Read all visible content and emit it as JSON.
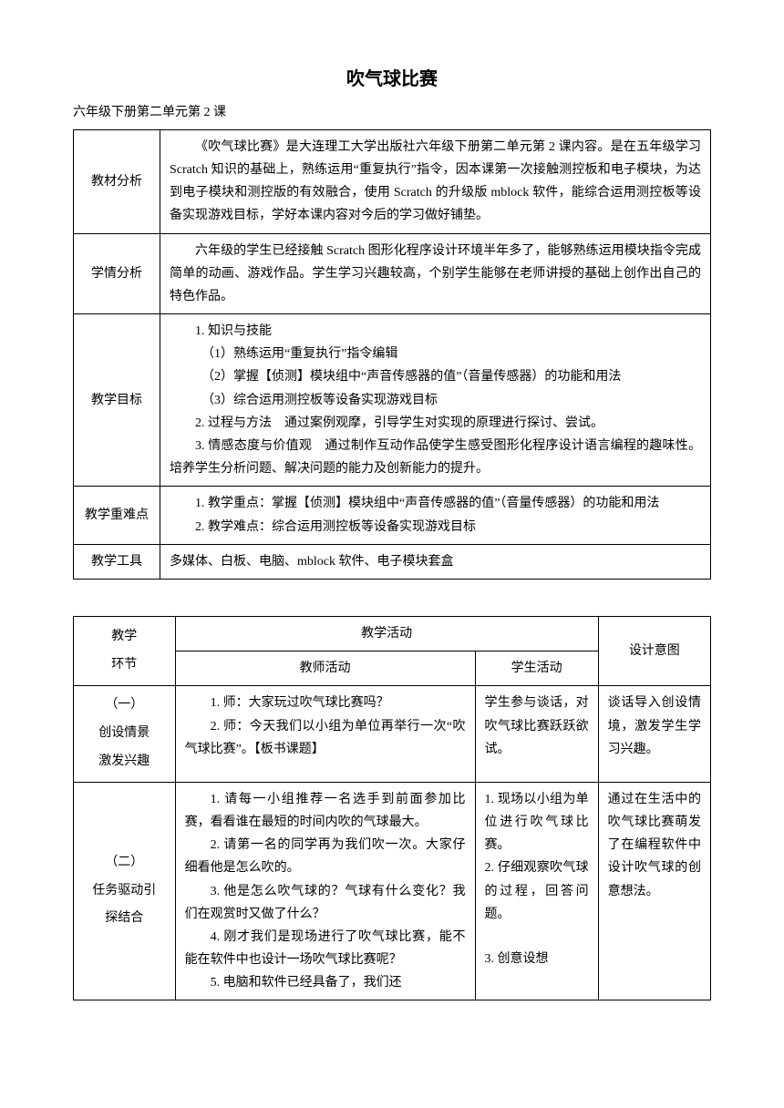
{
  "title": "吹气球比赛",
  "subtitle": "六年级下册第二单元第 2 课",
  "table1": {
    "rows": [
      {
        "label": "教材分析",
        "paragraphs": [
          "《吹气球比赛》是大连理工大学出版社六年级下册第二单元第 2 课内容。是在五年级学习 Scratch 知识的基础上，熟练运用“重复执行”指令，因本课第一次接触测控板和电子模块，为达到电子模块和测控版的有效融合，使用 Scratch 的升级版 mblock 软件，能综合运用测控板等设备实现游戏目标，学好本课内容对今后的学习做好铺垫。"
        ]
      },
      {
        "label": "学情分析",
        "paragraphs": [
          "六年级的学生已经接触 Scratch 图形化程序设计环境半年多了，能够熟练运用模块指令完成简单的动画、游戏作品。学生学习兴趣较高，个别学生能够在老师讲授的基础上创作出自己的特色作品。"
        ]
      },
      {
        "label": "教学目标",
        "lines": [
          "1. 知识与技能",
          "（1）熟练运用“重复执行”指令编辑",
          "（2）掌握【侦测】模块组中“声音传感器的值”（音量传感器）的功能和用法",
          "（3）综合运用测控板等设备实现游戏目标",
          "2. 过程与方法　通过案例观摩，引导学生对实现的原理进行探讨、尝试。",
          "3. 情感态度与价值观　通过制作互动作品使学生感受图形化程序设计语言编程的趣味性。培养学生分析问题、解决问题的能力及创新能力的提升。"
        ]
      },
      {
        "label": "教学重难点",
        "lines2": [
          "1. 教学重点：掌握【侦测】模块组中“声音传感器的值”（音量传感器）的功能和用法",
          "2. 教学难点：综合运用测控板等设备实现游戏目标"
        ]
      },
      {
        "label": "教学工具",
        "text": "多媒体、白板、电脑、mblock 软件、电子模块套盒"
      }
    ]
  },
  "table2": {
    "headers": {
      "stage": "教学\n环节",
      "activity": "教学活动",
      "teacher": "教师活动",
      "student": "学生活动",
      "intent": "设计意图"
    },
    "rows": [
      {
        "stage": "（一）\n创设情景\n激发兴趣",
        "teacher": [
          "1. 师：大家玩过吹气球比赛吗？",
          "2. 师：今天我们以小组为单位再举行一次“吹气球比赛”。【板书课题】"
        ],
        "student": "学生参与谈话，对吹气球比赛跃跃欲试。",
        "intent": "谈话导入创设情境，激发学生学习兴趣。"
      },
      {
        "stage": "（二）\n任务驱动引\n探结合",
        "teacher": [
          "1. 请每一小组推荐一名选手到前面参加比赛，看看谁在最短的时间内吹的气球最大。",
          "2. 请第一名的同学再为我们吹一次。大家仔细看他是怎么吹的。",
          "3. 他是怎么吹气球的？气球有什么变化？我们在观赏时又做了什么？",
          "4. 刚才我们是现场进行了吹气球比赛，能不能在软件中也设计一场吹气球比赛呢？",
          "5. 电脑和软件已经具备了，我们还"
        ],
        "student_lines": [
          "1. 现场以小组为单位进行吹气球比赛。",
          "2. 仔细观察吹气球的过程，回答问题。",
          "",
          "3. 创意设想"
        ],
        "intent": "通过在生活中的吹气球比赛萌发了在编程软件中设计吹气球的创意想法。"
      }
    ]
  }
}
